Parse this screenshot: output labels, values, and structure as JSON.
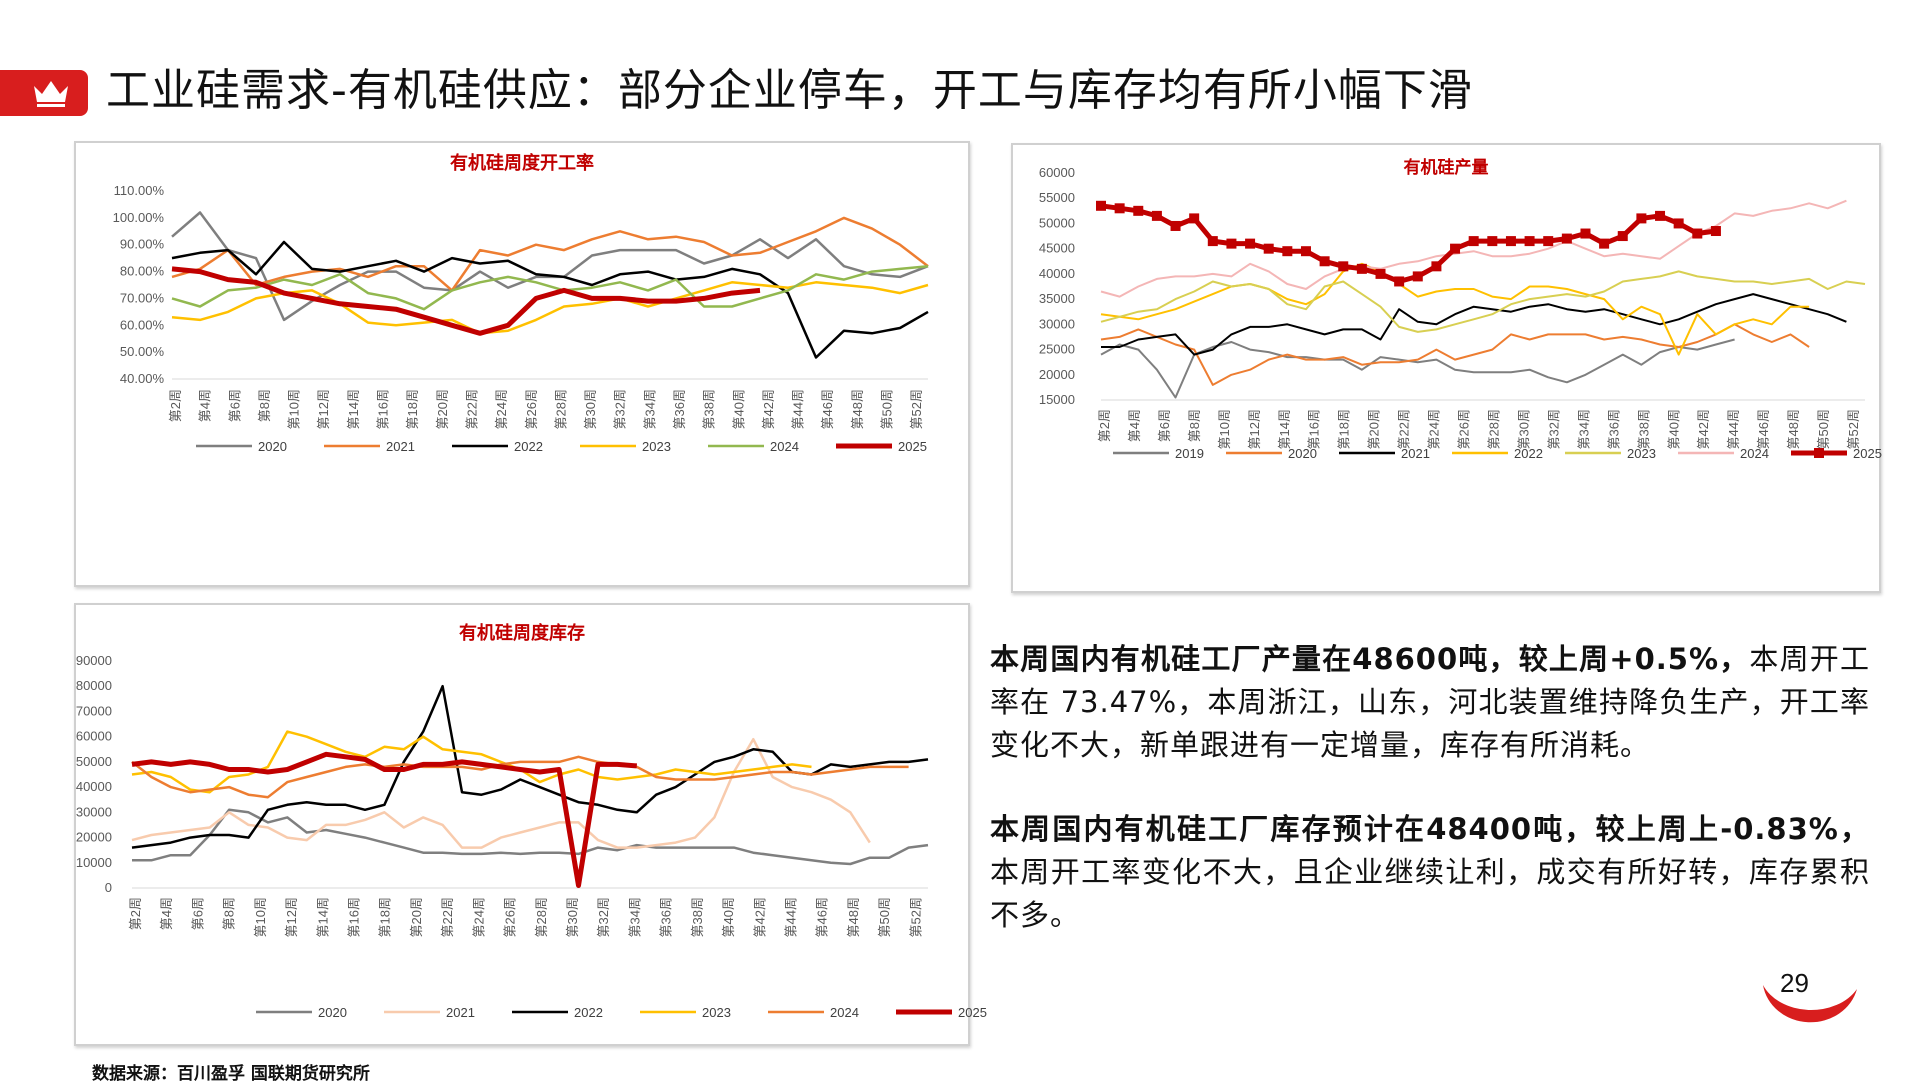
{
  "header": {
    "title": "工业硅需求-有机硅供应：部分企业停车，开工与库存均有所小幅下滑",
    "badge_icon": "crown-icon",
    "accent": "#d81e1e"
  },
  "week_labels": [
    "第2周",
    "第4周",
    "第6周",
    "第8周",
    "第10周",
    "第12周",
    "第14周",
    "第16周",
    "第18周",
    "第20周",
    "第22周",
    "第24周",
    "第26周",
    "第28周",
    "第30周",
    "第32周",
    "第34周",
    "第36周",
    "第38周",
    "第40周",
    "第42周",
    "第44周",
    "第46周",
    "第48周",
    "第50周",
    "第52周"
  ],
  "chart_data": [
    {
      "id": "operating-rate",
      "type": "line",
      "title": "有机硅周度开工率",
      "ylim": [
        40,
        110
      ],
      "yticks": [
        "110.00%",
        "100.00%",
        "90.00%",
        "80.00%",
        "70.00%",
        "60.00%",
        "50.00%",
        "40.00%"
      ],
      "series": [
        {
          "name": "2020",
          "color": "#7f7f7f",
          "width": 2.5,
          "values": [
            93,
            102,
            88,
            85,
            62,
            69,
            75,
            80,
            80,
            74,
            73,
            80,
            74,
            78,
            78,
            86,
            88,
            88,
            88,
            83,
            86,
            92,
            85,
            92,
            82,
            79,
            78,
            82
          ]
        },
        {
          "name": "2021",
          "color": "#ed7d31",
          "width": 2.5,
          "values": [
            78,
            81,
            88,
            75,
            78,
            80,
            81,
            78,
            82,
            82,
            73,
            88,
            86,
            90,
            88,
            92,
            95,
            92,
            93,
            91,
            86,
            87,
            91,
            95,
            100,
            96,
            90,
            82
          ]
        },
        {
          "name": "2022",
          "color": "#000000",
          "width": 2.5,
          "values": [
            85,
            87,
            88,
            79,
            91,
            81,
            80,
            82,
            84,
            80,
            85,
            83,
            84,
            79,
            78,
            75,
            79,
            80,
            77,
            78,
            81,
            79,
            72,
            48,
            58,
            57,
            59,
            65
          ]
        },
        {
          "name": "2023",
          "color": "#ffc000",
          "width": 2.5,
          "values": [
            63,
            62,
            65,
            70,
            72,
            73,
            68,
            61,
            60,
            61,
            62,
            57,
            58,
            62,
            67,
            68,
            70,
            67,
            70,
            73,
            76,
            75,
            74,
            76,
            75,
            74,
            72,
            75
          ]
        },
        {
          "name": "2024",
          "color": "#92b84f",
          "width": 2.5,
          "values": [
            70,
            67,
            73,
            74,
            77,
            75,
            79,
            72,
            70,
            66,
            73,
            76,
            78,
            76,
            73,
            74,
            76,
            73,
            77,
            67,
            67,
            70,
            73,
            79,
            77,
            80,
            81,
            82
          ]
        },
        {
          "name": "2025",
          "color": "#c00000",
          "width": 5,
          "values": [
            81,
            80,
            77,
            76,
            72,
            70,
            68,
            67,
            66,
            63,
            60,
            57,
            60,
            70,
            73,
            70,
            70,
            69,
            69,
            70,
            72,
            73
          ]
        }
      ],
      "legend": [
        "2020",
        "2021",
        "2022",
        "2023",
        "2024",
        "2025"
      ]
    },
    {
      "id": "output",
      "type": "line",
      "title": "有机硅产量",
      "ylim": [
        15000,
        60000
      ],
      "yticks": [
        "60000",
        "55000",
        "50000",
        "45000",
        "40000",
        "35000",
        "30000",
        "25000",
        "20000",
        "15000"
      ],
      "series": [
        {
          "name": "2019",
          "color": "#7f7f7f",
          "width": 2,
          "values": [
            24000,
            26000,
            25000,
            21000,
            15500,
            24000,
            25500,
            26500,
            25000,
            24500,
            23500,
            23500,
            23000,
            23000,
            21000,
            23500,
            23000,
            22500,
            23000,
            21000,
            20500,
            20500,
            20500,
            21000,
            19500,
            18500,
            20000,
            22000,
            24000,
            22000,
            24500,
            25500,
            25000,
            26000,
            27000
          ]
        },
        {
          "name": "2020",
          "color": "#ed7d31",
          "width": 2,
          "values": [
            27000,
            27500,
            29000,
            27500,
            26000,
            25000,
            18000,
            20000,
            21000,
            23000,
            24000,
            23000,
            23000,
            23500,
            22000,
            22500,
            22500,
            23000,
            25000,
            23000,
            24000,
            25000,
            28000,
            27000,
            28000,
            28000,
            28000,
            27000,
            27500,
            27000,
            26000,
            25500,
            26500,
            28000,
            30000,
            28000,
            26500,
            28000,
            25500
          ]
        },
        {
          "name": "2021",
          "color": "#000000",
          "width": 2,
          "values": [
            25500,
            25500,
            27000,
            27500,
            28000,
            24000,
            25000,
            28000,
            29500,
            29500,
            30000,
            29000,
            28000,
            29000,
            29000,
            27000,
            33000,
            30500,
            30000,
            32000,
            33500,
            33000,
            32500,
            33500,
            34000,
            33000,
            32500,
            33000,
            32000,
            31000,
            30000,
            31000,
            32500,
            34000,
            35000,
            36000,
            35000,
            34000,
            33000,
            32000,
            30500
          ]
        },
        {
          "name": "2022",
          "color": "#ffc000",
          "width": 2,
          "values": [
            32000,
            31500,
            31000,
            32000,
            33000,
            34500,
            36000,
            37500,
            38000,
            37000,
            35000,
            34000,
            36000,
            40500,
            42000,
            40500,
            38000,
            35500,
            36500,
            37000,
            37000,
            35500,
            35000,
            37500,
            37500,
            37000,
            36000,
            35000,
            31000,
            33500,
            32000,
            24000,
            32000,
            28000,
            30000,
            31000,
            30000,
            33500,
            33500
          ]
        },
        {
          "name": "2023",
          "color": "#d8cf52",
          "width": 2,
          "values": [
            30500,
            31500,
            32500,
            33000,
            35000,
            36500,
            38500,
            37500,
            38000,
            37000,
            34000,
            33000,
            37500,
            38500,
            36000,
            33500,
            29500,
            28500,
            29000,
            30000,
            31000,
            32000,
            34000,
            35000,
            35500,
            36000,
            35500,
            36500,
            38500,
            39000,
            39500,
            40500,
            39500,
            39000,
            38500,
            38500,
            38000,
            38500,
            39000,
            37000,
            38500,
            38000
          ]
        },
        {
          "name": "2024",
          "color": "#f4b6b6",
          "width": 2,
          "values": [
            36500,
            35500,
            37500,
            39000,
            39500,
            39500,
            40000,
            39500,
            42000,
            40500,
            38000,
            37000,
            39500,
            41000,
            41500,
            41000,
            42000,
            42500,
            43500,
            44000,
            44500,
            43500,
            43500,
            44000,
            45000,
            46500,
            45000,
            43500,
            44000,
            43500,
            43000,
            45500,
            48000,
            49500,
            52000,
            51500,
            52500,
            53000,
            54000,
            53000,
            54500
          ]
        },
        {
          "name": "2025",
          "color": "#c00000",
          "width": 5,
          "values": [
            53500,
            53000,
            52500,
            51500,
            49500,
            51000,
            46500,
            46000,
            46000,
            45000,
            44500,
            44500,
            42500,
            41500,
            41000,
            40000,
            38500,
            39500,
            41500,
            45000,
            46500,
            46500,
            46500,
            46500,
            46500,
            47000,
            48000,
            46000,
            47500,
            51000,
            51500,
            50000,
            48000,
            48500
          ]
        }
      ],
      "legend": [
        "2019",
        "2020",
        "2021",
        "2022",
        "2023",
        "2024",
        "2025"
      ]
    },
    {
      "id": "inventory",
      "type": "line",
      "title": "有机硅周度库存",
      "ylim": [
        0,
        90000
      ],
      "yticks": [
        "90000",
        "80000",
        "70000",
        "60000",
        "50000",
        "40000",
        "30000",
        "20000",
        "10000",
        "0"
      ],
      "series": [
        {
          "name": "2020",
          "color": "#7f7f7f",
          "width": 2.5,
          "values": [
            11000,
            11000,
            13000,
            13000,
            21000,
            31000,
            30000,
            26000,
            28000,
            22000,
            23000,
            21500,
            20000,
            18000,
            16000,
            14000,
            14000,
            13500,
            13500,
            14000,
            13500,
            14000,
            14000,
            13500,
            16000,
            15000,
            17000,
            16000,
            16000,
            16000,
            16000,
            16000,
            14000,
            13000,
            12000,
            11000,
            10000,
            9500,
            12000,
            12000,
            16000,
            17000
          ]
        },
        {
          "name": "2021",
          "color": "#f8cbad",
          "width": 2.5,
          "values": [
            19000,
            21000,
            22000,
            23000,
            24000,
            30000,
            25000,
            24000,
            20000,
            19000,
            25000,
            25000,
            27000,
            30000,
            24000,
            28000,
            25000,
            16000,
            16000,
            20000,
            22000,
            24000,
            26000,
            26000,
            19000,
            16000,
            16000,
            17000,
            18000,
            20000,
            28000,
            46000,
            59000,
            44000,
            40000,
            38000,
            35000,
            30000,
            18000
          ]
        },
        {
          "name": "2022",
          "color": "#000000",
          "width": 2.5,
          "values": [
            16000,
            17000,
            18000,
            20000,
            21000,
            21000,
            20000,
            31000,
            33000,
            34000,
            33000,
            33000,
            31000,
            33000,
            50000,
            62000,
            80000,
            38000,
            37000,
            39000,
            43000,
            40000,
            37000,
            34000,
            33000,
            31000,
            30000,
            37000,
            40000,
            45000,
            50000,
            52000,
            55000,
            54000,
            46000,
            45000,
            49000,
            48000,
            49000,
            50000,
            50000,
            51000
          ]
        },
        {
          "name": "2023",
          "color": "#ffc000",
          "width": 2.5,
          "values": [
            45000,
            46000,
            44000,
            39000,
            38000,
            44000,
            45000,
            48000,
            62000,
            60000,
            57000,
            54000,
            52000,
            56000,
            55000,
            60000,
            55000,
            54000,
            53000,
            50000,
            47000,
            42000,
            45000,
            47000,
            44000,
            43000,
            44000,
            45000,
            47000,
            46000,
            45000,
            46000,
            47000,
            48000,
            49000,
            48000
          ]
        },
        {
          "name": "2024",
          "color": "#ed7d31",
          "width": 2.5,
          "values": [
            50000,
            44000,
            40000,
            38000,
            39000,
            40000,
            37000,
            36000,
            42000,
            44000,
            46000,
            48000,
            49000,
            48000,
            49000,
            48000,
            48000,
            48000,
            47000,
            49000,
            50000,
            50000,
            50000,
            52000,
            50000,
            49000,
            48000,
            44000,
            43000,
            43000,
            43000,
            44000,
            45000,
            46000,
            46000,
            45000,
            46000,
            47000,
            48000,
            48000,
            48000
          ]
        },
        {
          "name": "2025",
          "color": "#c00000",
          "width": 5,
          "values": [
            49000,
            50000,
            49000,
            50000,
            49000,
            47000,
            47000,
            46000,
            47000,
            50000,
            53000,
            52000,
            51000,
            47000,
            47000,
            49000,
            49000,
            50000,
            49000,
            48000,
            47000,
            46000,
            47000,
            1000,
            49000,
            49000,
            48400
          ]
        }
      ],
      "legend": [
        "2020",
        "2021",
        "2022",
        "2023",
        "2024",
        "2025"
      ]
    }
  ],
  "commentary": {
    "p1_bold": "本周国内有机硅工厂产量在48600吨，较上周+0.5%，",
    "p1_rest": "本周开工率在 73.47%，本周浙江，山东，河北装置维持降负生产，开工率变化不大，新单跟进有一定增量，库存有所消耗。",
    "p2_bold": "本周国内有机硅工厂库存预计在48400吨，较上周上-0.83%，",
    "p2_rest": "本周开工率变化不大，且企业继续让利，成交有所好转，库存累积不多。"
  },
  "footer": {
    "source": "数据来源：百川盈孚  国联期货研究所",
    "page_number": "29"
  }
}
